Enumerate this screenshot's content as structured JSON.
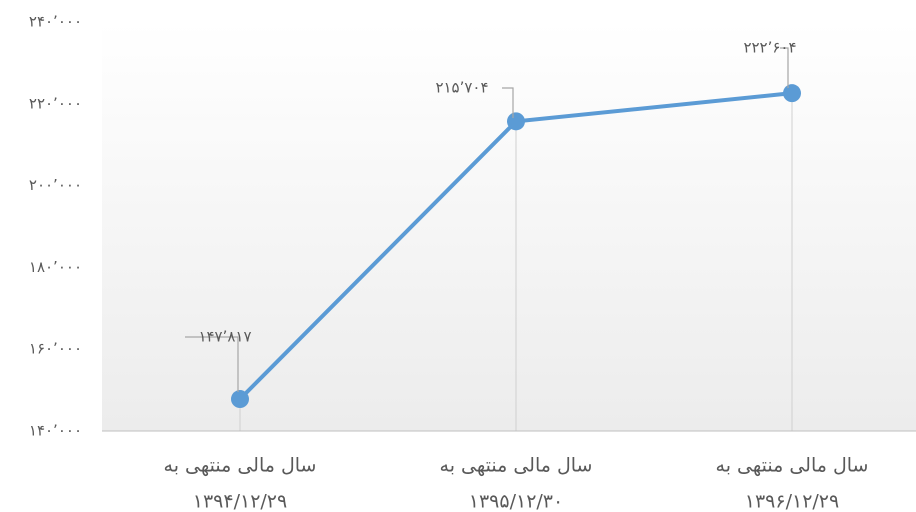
{
  "chart_data": {
    "type": "line",
    "categories": [
      [
        "سال مالی منتهی به",
        "۱۳۹۴/۱۲/۲۹"
      ],
      [
        "سال مالی منتهی به",
        "۱۳۹۵/۱۲/۳۰"
      ],
      [
        "سال مالی منتهی به",
        "۱۳۹۶/۱۲/۲۹"
      ]
    ],
    "series": [
      {
        "color": "#5b9bd5",
        "values": [
          147817,
          215704,
          222604
        ],
        "value_labels": [
          "۱۴۷٬۸۱۷",
          "۲۱۵٬۷۰۴",
          "۲۲۲٬۶۰۴"
        ]
      }
    ],
    "ylim": [
      140000,
      240000
    ],
    "yticks": [
      {
        "value": 140000,
        "label": "۱۴۰٬۰۰۰"
      },
      {
        "value": 160000,
        "label": "۱۶۰٬۰۰۰"
      },
      {
        "value": 180000,
        "label": "۱۸۰٬۰۰۰"
      },
      {
        "value": 200000,
        "label": "۲۰۰٬۰۰۰"
      },
      {
        "value": 220000,
        "label": "۲۲۰٬۰۰۰"
      },
      {
        "value": 240000,
        "label": "۲۴۰٬۰۰۰"
      }
    ],
    "grid": false
  }
}
